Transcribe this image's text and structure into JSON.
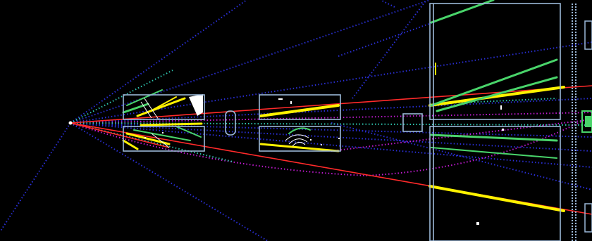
{
  "image": {
    "kind": "particle-collision-event-display",
    "background": "#000000",
    "colors": {
      "detector_outline": "#9bb8d8",
      "track_blue": "#2a2fd6",
      "track_magenta": "#c21ad2",
      "track_red": "#ff2a2a",
      "track_yellow": "#fff200",
      "track_green": "#49d46a",
      "track_teal": "#2fc6b0",
      "hits_white": "#ffffff"
    }
  }
}
